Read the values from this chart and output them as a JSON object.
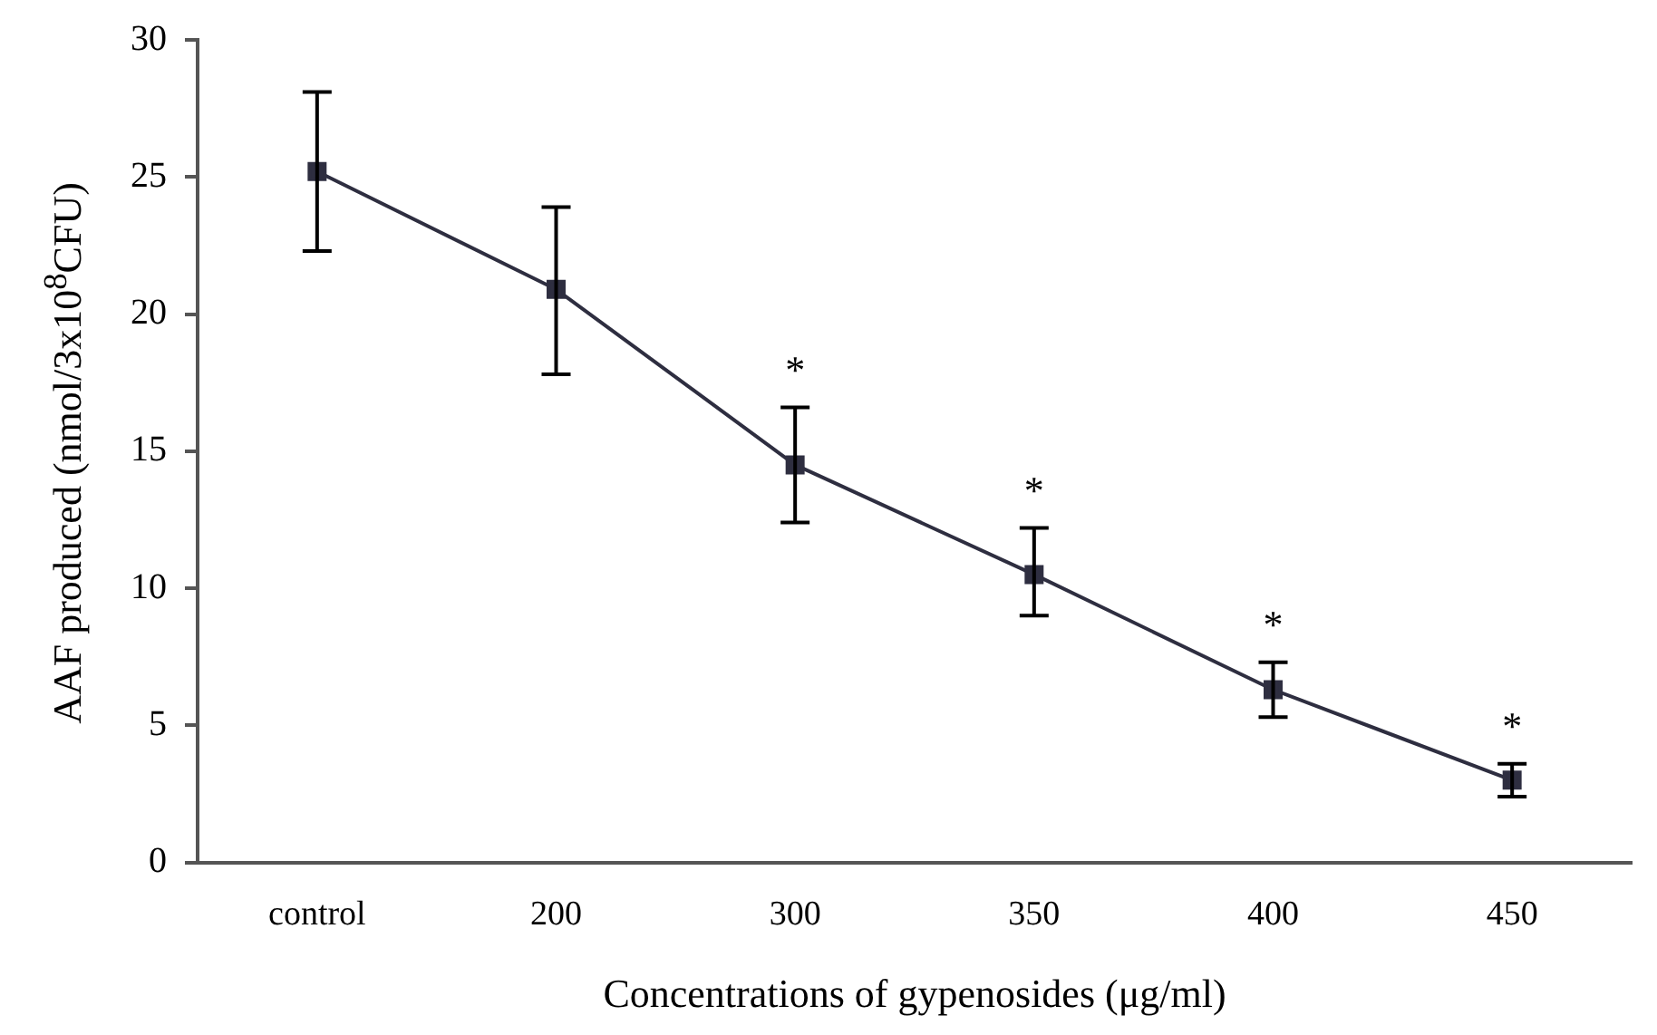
{
  "chart_data": {
    "type": "line",
    "xlabel": "Concentrations of gypenosides (μg/ml)",
    "ylabel": "AAF produced (nmol/3x10$^{8}$CFU)",
    "categories": [
      "control",
      "200",
      "300",
      "350",
      "400",
      "450"
    ],
    "series": [
      {
        "color": "#2e2e40",
        "values": [
          25.2,
          20.9,
          14.5,
          10.5,
          6.3,
          3.0
        ],
        "errors": [
          [
            22.3,
            28.1
          ],
          [
            17.8,
            23.9
          ],
          [
            12.4,
            16.6
          ],
          [
            9.0,
            12.2
          ],
          [
            5.3,
            7.3
          ],
          [
            2.4,
            3.6
          ]
        ]
      }
    ],
    "ylim": [
      0,
      30
    ],
    "yticks": [
      0,
      5,
      10,
      15,
      20,
      25,
      30
    ],
    "grid": false,
    "legend": false,
    "marker": "square",
    "line_style": "solid",
    "annotations": [
      {
        "text": "*",
        "x": "300",
        "y": 16.6
      },
      {
        "text": "*",
        "x": "350",
        "y": 12.2
      },
      {
        "text": "*",
        "x": "400",
        "y": 7.3
      },
      {
        "text": "*",
        "x": "450",
        "y": 3.6
      }
    ]
  }
}
